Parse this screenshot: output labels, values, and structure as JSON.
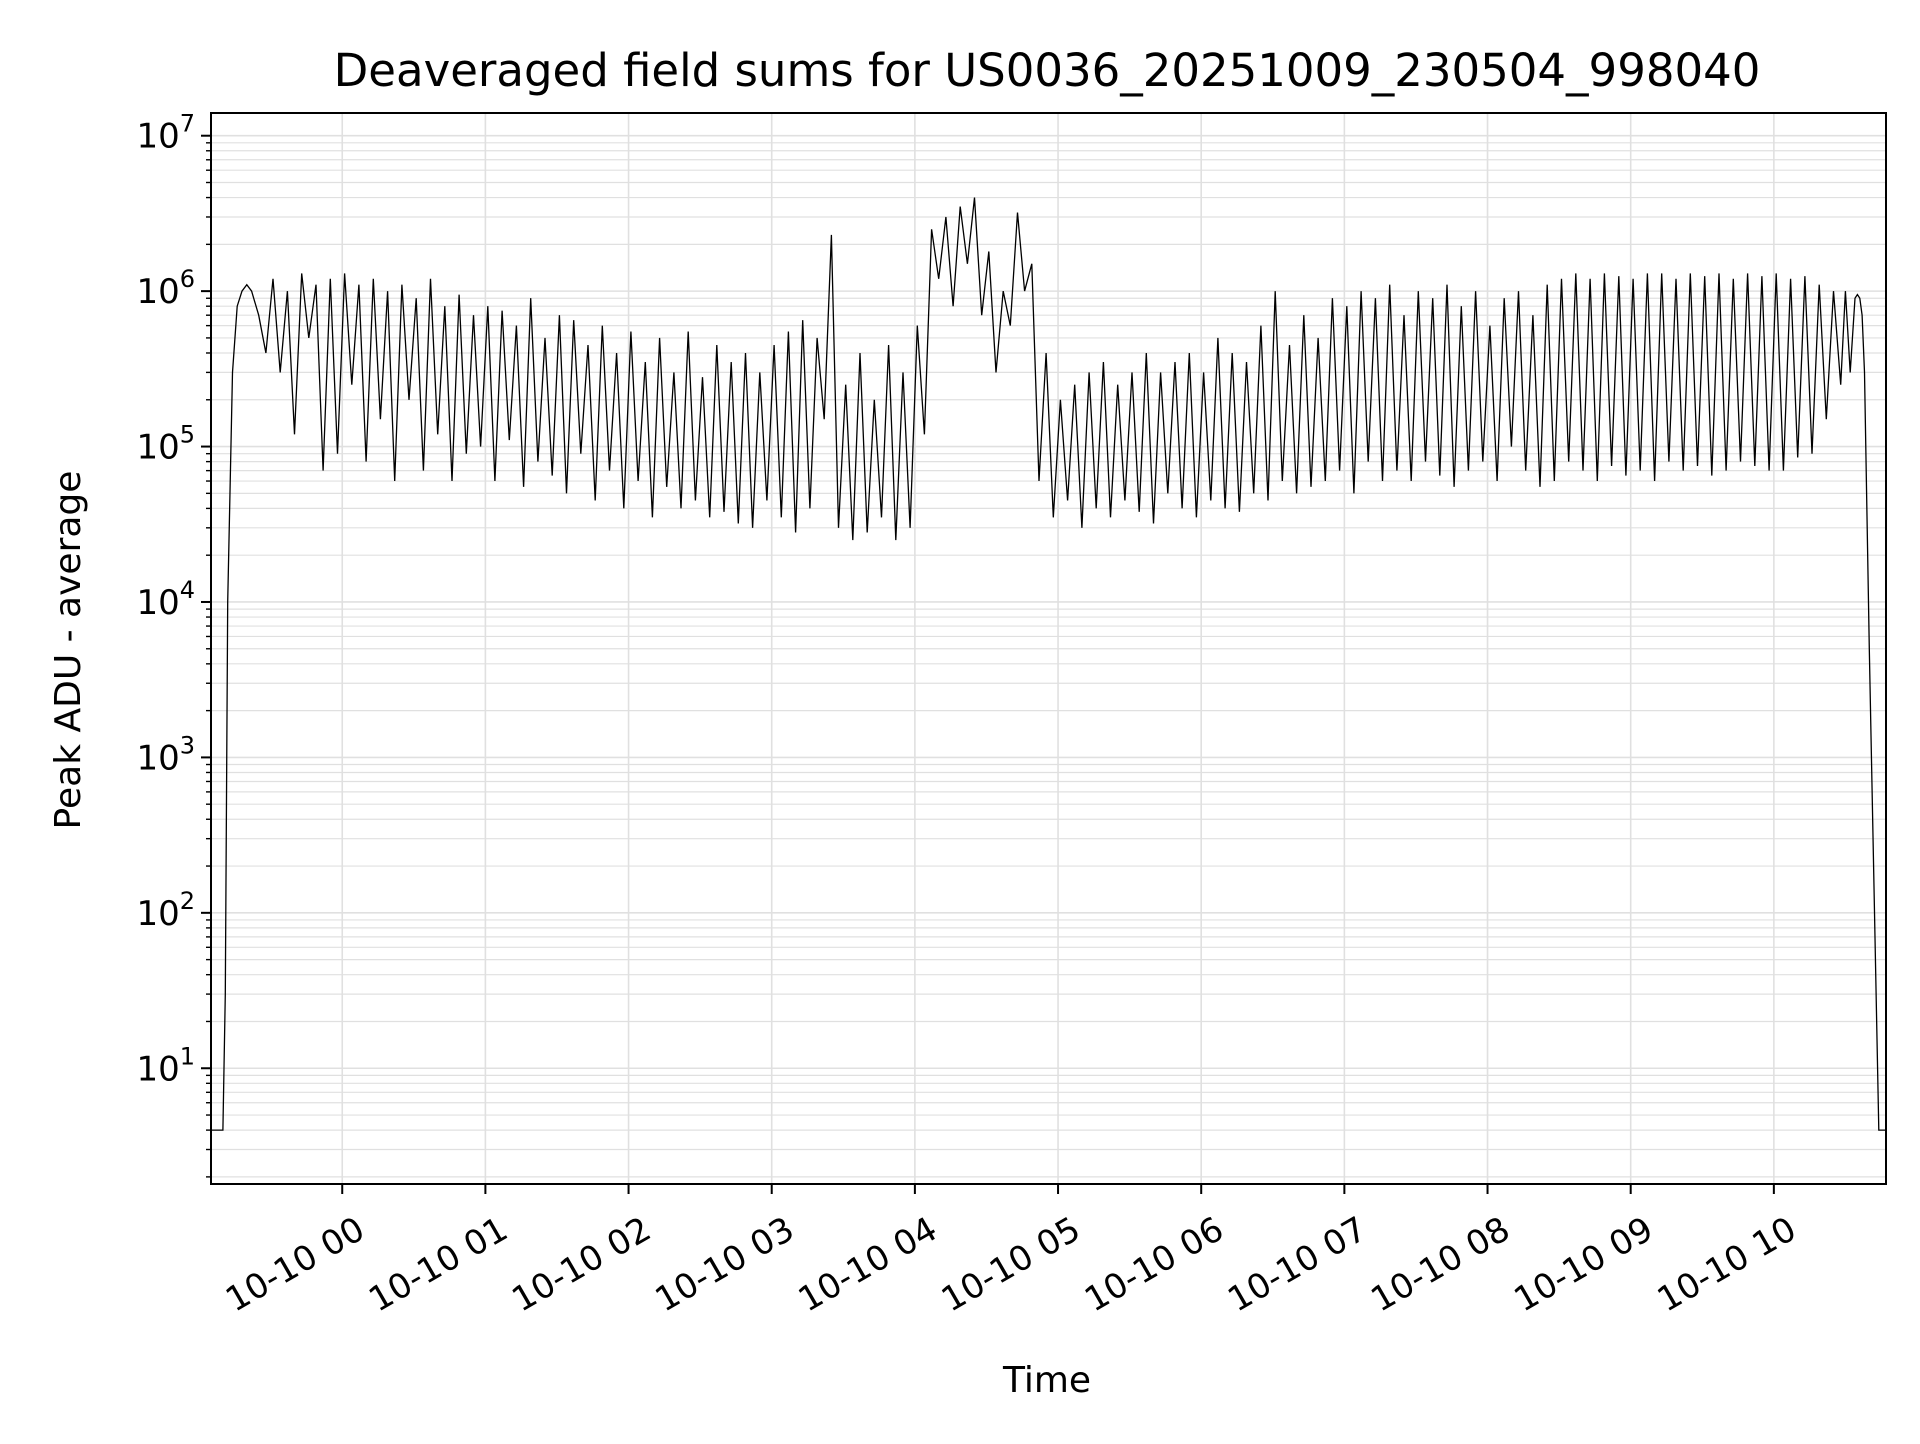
{
  "chart_data": {
    "type": "line",
    "title": "Deaveraged field sums for US0036_20251009_230504_998040",
    "xlabel": "Time",
    "ylabel": "Peak ADU - average",
    "x_scale": "time",
    "y_scale": "log",
    "x_range": [
      "2025-10-09 23:05",
      "2025-10-10 10:47"
    ],
    "ylim": [
      1.8,
      14000000
    ],
    "grid": true,
    "series_color": "#000000",
    "grid_color": "#e0e0e0",
    "x_ticks": [
      {
        "value": "2025-10-10 00:00",
        "label": "10-10 00"
      },
      {
        "value": "2025-10-10 01:00",
        "label": "10-10 01"
      },
      {
        "value": "2025-10-10 02:00",
        "label": "10-10 02"
      },
      {
        "value": "2025-10-10 03:00",
        "label": "10-10 03"
      },
      {
        "value": "2025-10-10 04:00",
        "label": "10-10 04"
      },
      {
        "value": "2025-10-10 05:00",
        "label": "10-10 05"
      },
      {
        "value": "2025-10-10 06:00",
        "label": "10-10 06"
      },
      {
        "value": "2025-10-10 07:00",
        "label": "10-10 07"
      },
      {
        "value": "2025-10-10 08:00",
        "label": "10-10 08"
      },
      {
        "value": "2025-10-10 09:00",
        "label": "10-10 09"
      },
      {
        "value": "2025-10-10 10:00",
        "label": "10-10 10"
      }
    ],
    "y_ticks": [
      {
        "value": 10,
        "base": "10",
        "exp": "1"
      },
      {
        "value": 100,
        "base": "10",
        "exp": "2"
      },
      {
        "value": 1000,
        "base": "10",
        "exp": "3"
      },
      {
        "value": 10000,
        "base": "10",
        "exp": "4"
      },
      {
        "value": 100000,
        "base": "10",
        "exp": "5"
      },
      {
        "value": 1000000,
        "base": "10",
        "exp": "6"
      },
      {
        "value": 10000000,
        "base": "10",
        "exp": "7"
      }
    ],
    "series": [
      {
        "x": [
          "2025-10-09 23:05",
          "2025-10-09 23:08",
          "2025-10-09 23:09",
          "2025-10-09 23:10",
          "2025-10-09 23:11",
          "2025-10-09 23:12",
          "2025-10-09 23:14",
          "2025-10-09 23:16",
          "2025-10-09 23:18",
          "2025-10-09 23:20",
          "2025-10-09 23:22",
          "2025-10-09 23:25",
          "2025-10-09 23:28",
          "2025-10-09 23:31",
          "2025-10-09 23:34",
          "2025-10-09 23:37",
          "2025-10-09 23:40",
          "2025-10-09 23:43",
          "2025-10-09 23:46",
          "2025-10-09 23:49",
          "2025-10-09 23:52",
          "2025-10-09 23:55",
          "2025-10-09 23:58",
          "2025-10-10 00:01",
          "2025-10-10 00:04",
          "2025-10-10 00:07",
          "2025-10-10 00:10",
          "2025-10-10 00:13",
          "2025-10-10 00:16",
          "2025-10-10 00:19",
          "2025-10-10 00:22",
          "2025-10-10 00:25",
          "2025-10-10 00:28",
          "2025-10-10 00:31",
          "2025-10-10 00:34",
          "2025-10-10 00:37",
          "2025-10-10 00:40",
          "2025-10-10 00:43",
          "2025-10-10 00:46",
          "2025-10-10 00:49",
          "2025-10-10 00:52",
          "2025-10-10 00:55",
          "2025-10-10 00:58",
          "2025-10-10 01:01",
          "2025-10-10 01:04",
          "2025-10-10 01:07",
          "2025-10-10 01:10",
          "2025-10-10 01:13",
          "2025-10-10 01:16",
          "2025-10-10 01:19",
          "2025-10-10 01:22",
          "2025-10-10 01:25",
          "2025-10-10 01:28",
          "2025-10-10 01:31",
          "2025-10-10 01:34",
          "2025-10-10 01:37",
          "2025-10-10 01:40",
          "2025-10-10 01:43",
          "2025-10-10 01:46",
          "2025-10-10 01:49",
          "2025-10-10 01:52",
          "2025-10-10 01:55",
          "2025-10-10 01:58",
          "2025-10-10 02:01",
          "2025-10-10 02:04",
          "2025-10-10 02:07",
          "2025-10-10 02:10",
          "2025-10-10 02:13",
          "2025-10-10 02:16",
          "2025-10-10 02:19",
          "2025-10-10 02:22",
          "2025-10-10 02:25",
          "2025-10-10 02:28",
          "2025-10-10 02:31",
          "2025-10-10 02:34",
          "2025-10-10 02:37",
          "2025-10-10 02:40",
          "2025-10-10 02:43",
          "2025-10-10 02:46",
          "2025-10-10 02:49",
          "2025-10-10 02:52",
          "2025-10-10 02:55",
          "2025-10-10 02:58",
          "2025-10-10 03:01",
          "2025-10-10 03:04",
          "2025-10-10 03:07",
          "2025-10-10 03:10",
          "2025-10-10 03:13",
          "2025-10-10 03:16",
          "2025-10-10 03:19",
          "2025-10-10 03:22",
          "2025-10-10 03:25",
          "2025-10-10 03:28",
          "2025-10-10 03:31",
          "2025-10-10 03:34",
          "2025-10-10 03:37",
          "2025-10-10 03:40",
          "2025-10-10 03:43",
          "2025-10-10 03:46",
          "2025-10-10 03:49",
          "2025-10-10 03:52",
          "2025-10-10 03:55",
          "2025-10-10 03:58",
          "2025-10-10 04:01",
          "2025-10-10 04:04",
          "2025-10-10 04:07",
          "2025-10-10 04:10",
          "2025-10-10 04:13",
          "2025-10-10 04:16",
          "2025-10-10 04:19",
          "2025-10-10 04:22",
          "2025-10-10 04:25",
          "2025-10-10 04:28",
          "2025-10-10 04:31",
          "2025-10-10 04:34",
          "2025-10-10 04:37",
          "2025-10-10 04:40",
          "2025-10-10 04:43",
          "2025-10-10 04:46",
          "2025-10-10 04:49",
          "2025-10-10 04:52",
          "2025-10-10 04:55",
          "2025-10-10 04:58",
          "2025-10-10 05:01",
          "2025-10-10 05:04",
          "2025-10-10 05:07",
          "2025-10-10 05:10",
          "2025-10-10 05:13",
          "2025-10-10 05:16",
          "2025-10-10 05:19",
          "2025-10-10 05:22",
          "2025-10-10 05:25",
          "2025-10-10 05:28",
          "2025-10-10 05:31",
          "2025-10-10 05:34",
          "2025-10-10 05:37",
          "2025-10-10 05:40",
          "2025-10-10 05:43",
          "2025-10-10 05:46",
          "2025-10-10 05:49",
          "2025-10-10 05:52",
          "2025-10-10 05:55",
          "2025-10-10 05:58",
          "2025-10-10 06:01",
          "2025-10-10 06:04",
          "2025-10-10 06:07",
          "2025-10-10 06:10",
          "2025-10-10 06:13",
          "2025-10-10 06:16",
          "2025-10-10 06:19",
          "2025-10-10 06:22",
          "2025-10-10 06:25",
          "2025-10-10 06:28",
          "2025-10-10 06:31",
          "2025-10-10 06:34",
          "2025-10-10 06:37",
          "2025-10-10 06:40",
          "2025-10-10 06:43",
          "2025-10-10 06:46",
          "2025-10-10 06:49",
          "2025-10-10 06:52",
          "2025-10-10 06:55",
          "2025-10-10 06:58",
          "2025-10-10 07:01",
          "2025-10-10 07:04",
          "2025-10-10 07:07",
          "2025-10-10 07:10",
          "2025-10-10 07:13",
          "2025-10-10 07:16",
          "2025-10-10 07:19",
          "2025-10-10 07:22",
          "2025-10-10 07:25",
          "2025-10-10 07:28",
          "2025-10-10 07:31",
          "2025-10-10 07:34",
          "2025-10-10 07:37",
          "2025-10-10 07:40",
          "2025-10-10 07:43",
          "2025-10-10 07:46",
          "2025-10-10 07:49",
          "2025-10-10 07:52",
          "2025-10-10 07:55",
          "2025-10-10 07:58",
          "2025-10-10 08:01",
          "2025-10-10 08:04",
          "2025-10-10 08:07",
          "2025-10-10 08:10",
          "2025-10-10 08:13",
          "2025-10-10 08:16",
          "2025-10-10 08:19",
          "2025-10-10 08:22",
          "2025-10-10 08:25",
          "2025-10-10 08:28",
          "2025-10-10 08:31",
          "2025-10-10 08:34",
          "2025-10-10 08:37",
          "2025-10-10 08:40",
          "2025-10-10 08:43",
          "2025-10-10 08:46",
          "2025-10-10 08:49",
          "2025-10-10 08:52",
          "2025-10-10 08:55",
          "2025-10-10 08:58",
          "2025-10-10 09:01",
          "2025-10-10 09:04",
          "2025-10-10 09:07",
          "2025-10-10 09:10",
          "2025-10-10 09:13",
          "2025-10-10 09:16",
          "2025-10-10 09:19",
          "2025-10-10 09:22",
          "2025-10-10 09:25",
          "2025-10-10 09:28",
          "2025-10-10 09:31",
          "2025-10-10 09:34",
          "2025-10-10 09:37",
          "2025-10-10 09:40",
          "2025-10-10 09:43",
          "2025-10-10 09:46",
          "2025-10-10 09:49",
          "2025-10-10 09:52",
          "2025-10-10 09:55",
          "2025-10-10 09:58",
          "2025-10-10 10:01",
          "2025-10-10 10:04",
          "2025-10-10 10:07",
          "2025-10-10 10:10",
          "2025-10-10 10:13",
          "2025-10-10 10:16",
          "2025-10-10 10:19",
          "2025-10-10 10:22",
          "2025-10-10 10:25",
          "2025-10-10 10:28",
          "2025-10-10 10:30",
          "2025-10-10 10:32",
          "2025-10-10 10:34",
          "2025-10-10 10:35",
          "2025-10-10 10:36",
          "2025-10-10 10:37",
          "2025-10-10 10:38",
          "2025-10-10 10:40",
          "2025-10-10 10:44",
          "2025-10-10 10:47"
        ],
        "y": [
          4,
          4,
          4,
          4,
          30,
          10000,
          300000,
          800000,
          1000000,
          1100000,
          1000000,
          700000,
          400000,
          1200000,
          300000,
          1000000,
          120000,
          1300000,
          500000,
          1100000,
          70000,
          1200000,
          90000,
          1300000,
          250000,
          1100000,
          80000,
          1200000,
          150000,
          1000000,
          60000,
          1100000,
          200000,
          900000,
          70000,
          1200000,
          120000,
          800000,
          60000,
          950000,
          90000,
          700000,
          100000,
          800000,
          60000,
          750000,
          110000,
          600000,
          55000,
          900000,
          80000,
          500000,
          65000,
          700000,
          50000,
          650000,
          90000,
          450000,
          45000,
          600000,
          70000,
          400000,
          40000,
          550000,
          60000,
          350000,
          35000,
          500000,
          55000,
          300000,
          40000,
          550000,
          45000,
          280000,
          35000,
          450000,
          38000,
          350000,
          32000,
          400000,
          30000,
          300000,
          45000,
          450000,
          35000,
          550000,
          28000,
          650000,
          40000,
          500000,
          150000,
          2300000,
          30000,
          250000,
          25000,
          400000,
          28000,
          200000,
          35000,
          450000,
          25000,
          300000,
          30000,
          600000,
          120000,
          2500000,
          1200000,
          3000000,
          800000,
          3500000,
          1500000,
          4000000,
          700000,
          1800000,
          300000,
          1000000,
          600000,
          3200000,
          1000000,
          1500000,
          60000,
          400000,
          35000,
          200000,
          45000,
          250000,
          30000,
          300000,
          40000,
          350000,
          35000,
          250000,
          45000,
          300000,
          38000,
          400000,
          32000,
          300000,
          50000,
          350000,
          40000,
          400000,
          35000,
          300000,
          45000,
          500000,
          40000,
          400000,
          38000,
          350000,
          50000,
          600000,
          45000,
          1000000,
          60000,
          450000,
          50000,
          700000,
          55000,
          500000,
          60000,
          900000,
          70000,
          800000,
          50000,
          1000000,
          80000,
          900000,
          60000,
          1100000,
          70000,
          700000,
          60000,
          1000000,
          80000,
          900000,
          65000,
          1100000,
          55000,
          800000,
          70000,
          1000000,
          80000,
          600000,
          60000,
          900000,
          100000,
          1000000,
          70000,
          700000,
          55000,
          1100000,
          60000,
          1200000,
          80000,
          1300000,
          70000,
          1200000,
          60000,
          1300000,
          75000,
          1250000,
          65000,
          1200000,
          70000,
          1300000,
          60000,
          1300000,
          80000,
          1200000,
          70000,
          1300000,
          75000,
          1250000,
          65000,
          1300000,
          70000,
          1200000,
          80000,
          1300000,
          75000,
          1250000,
          70000,
          1300000,
          70000,
          1200000,
          85000,
          1250000,
          90000,
          1100000,
          150000,
          1000000,
          250000,
          1000000,
          300000,
          900000,
          950000,
          900000,
          700000,
          300000,
          5000,
          4,
          4
        ]
      }
    ]
  }
}
